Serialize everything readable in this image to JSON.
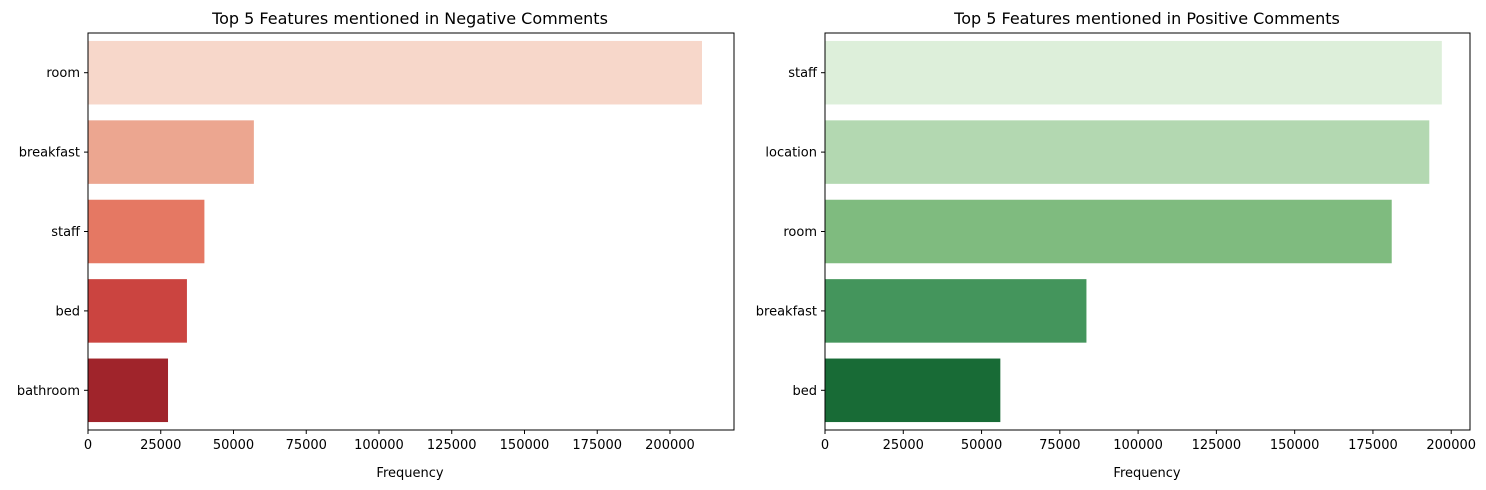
{
  "chart_data": [
    {
      "type": "bar",
      "orientation": "horizontal",
      "title": "Top 5 Features mentioned in Negative Comments",
      "xlabel": "Frequency",
      "ylabel": "",
      "categories": [
        "room",
        "breakfast",
        "staff",
        "bed",
        "bathroom"
      ],
      "values": [
        211000,
        57000,
        40000,
        34000,
        27500
      ],
      "colors": [
        "#f7d7ca",
        "#eca690",
        "#e57863",
        "#cb4440",
        "#a0242b"
      ],
      "xlim": [
        0,
        222000
      ],
      "xticks": [
        0,
        25000,
        50000,
        75000,
        100000,
        125000,
        150000,
        175000,
        200000
      ],
      "grid": false,
      "legend": "none"
    },
    {
      "type": "bar",
      "orientation": "horizontal",
      "title": "Top 5 Features mentioned in Positive Comments",
      "xlabel": "Frequency",
      "ylabel": "",
      "categories": [
        "staff",
        "location",
        "room",
        "breakfast",
        "bed"
      ],
      "values": [
        197000,
        193000,
        181000,
        83500,
        56000
      ],
      "colors": [
        "#ddefda",
        "#b3d8b1",
        "#7fbb7f",
        "#44955c",
        "#186b36"
      ],
      "xlim": [
        0,
        206000
      ],
      "xticks": [
        0,
        25000,
        50000,
        75000,
        100000,
        125000,
        150000,
        175000,
        200000
      ],
      "grid": false,
      "legend": "none"
    }
  ]
}
